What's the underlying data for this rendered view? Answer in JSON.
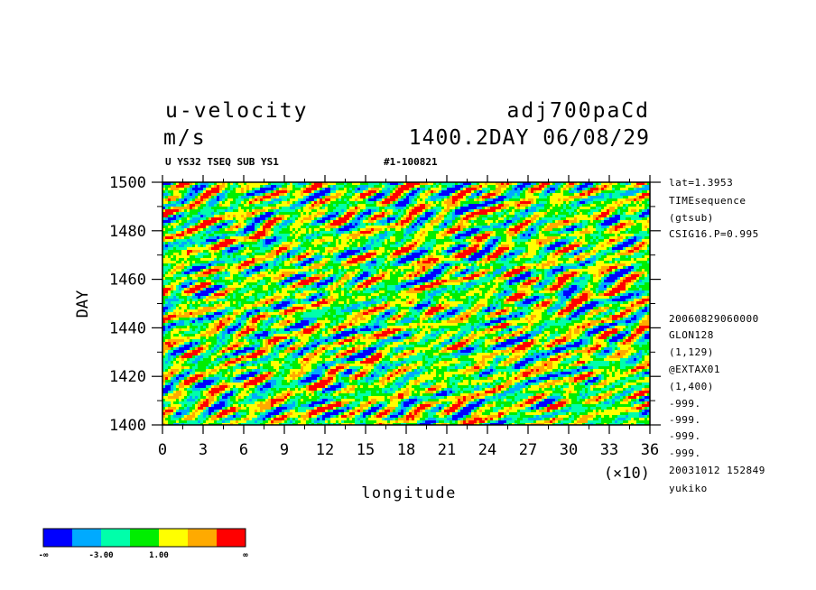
{
  "header": {
    "title_left": "u-velocity",
    "title_right": "adj700paCd",
    "units": "m/s",
    "time_label": "1400.2DAY 06/08/29",
    "subtitle_left": "U YS32 TSEQ SUB YS1",
    "subtitle_right": "#1-100821"
  },
  "info_lines": [
    "lat=1.3953",
    "TIMEsequence",
    "(gtsub)",
    "CSIG16.P=0.995",
    "20060829060000",
    "GLON128",
    "(1,129)",
    "@EXTAX01",
    "(1,400)",
    "-999.",
    "-999.",
    "-999.",
    "-999.",
    "20031012 152849",
    "yukiko"
  ],
  "chart_data": {
    "type": "heatmap",
    "title": "u-velocity",
    "xlabel": "longitude",
    "ylabel": "DAY",
    "x_multiplier_label": "(×10)",
    "xlim": [
      0,
      36
    ],
    "ylim": [
      1400,
      1500
    ],
    "x_ticks": [
      "0",
      "3",
      "6",
      "9",
      "12",
      "15",
      "18",
      "21",
      "24",
      "27",
      "30",
      "33",
      "36"
    ],
    "y_ticks": [
      "1400",
      "1420",
      "1440",
      "1460",
      "1480",
      "1500"
    ],
    "grid": false,
    "colorbar": {
      "colors": [
        "#0000ff",
        "#00aaff",
        "#00ffaa",
        "#00ee00",
        "#ffff00",
        "#ffaa00",
        "#ff0000"
      ],
      "labels": [
        "-∞",
        "-3.00",
        "1.00",
        "∞"
      ]
    }
  }
}
